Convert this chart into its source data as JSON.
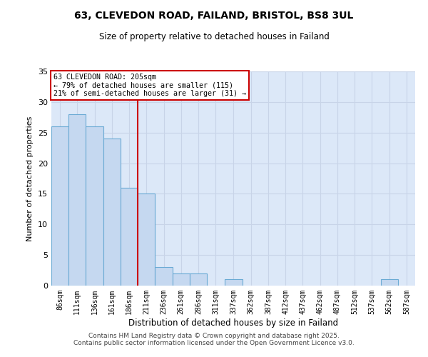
{
  "title_line1": "63, CLEVEDON ROAD, FAILAND, BRISTOL, BS8 3UL",
  "title_line2": "Size of property relative to detached houses in Failand",
  "xlabel": "Distribution of detached houses by size in Failand",
  "ylabel": "Number of detached properties",
  "bar_color": "#c5d8f0",
  "bar_edge_color": "#6aaad4",
  "annotation_line": "63 CLEVEDON ROAD: 205sqm",
  "annotation_smaller": "← 79% of detached houses are smaller (115)",
  "annotation_larger": "21% of semi-detached houses are larger (31) →",
  "vline_color": "#cc0000",
  "categories": [
    "86sqm",
    "111sqm",
    "136sqm",
    "161sqm",
    "186sqm",
    "211sqm",
    "236sqm",
    "261sqm",
    "286sqm",
    "311sqm",
    "337sqm",
    "362sqm",
    "387sqm",
    "412sqm",
    "437sqm",
    "462sqm",
    "487sqm",
    "512sqm",
    "537sqm",
    "562sqm",
    "587sqm"
  ],
  "values": [
    26,
    28,
    26,
    24,
    16,
    15,
    3,
    2,
    2,
    0,
    1,
    0,
    0,
    0,
    0,
    0,
    0,
    0,
    0,
    1,
    0
  ],
  "bin_starts": [
    86,
    111,
    136,
    161,
    186,
    211,
    236,
    261,
    286,
    311,
    337,
    362,
    387,
    412,
    437,
    462,
    487,
    512,
    537,
    562,
    587
  ],
  "bin_width": 25,
  "vline_x": 211,
  "xlim": [
    86,
    612
  ],
  "ylim": [
    0,
    35
  ],
  "yticks": [
    0,
    5,
    10,
    15,
    20,
    25,
    30,
    35
  ],
  "grid_color": "#c8d4e8",
  "background_color": "#dce8f8",
  "footer_line1": "Contains HM Land Registry data © Crown copyright and database right 2025.",
  "footer_line2": "Contains public sector information licensed under the Open Government Licence v3.0."
}
